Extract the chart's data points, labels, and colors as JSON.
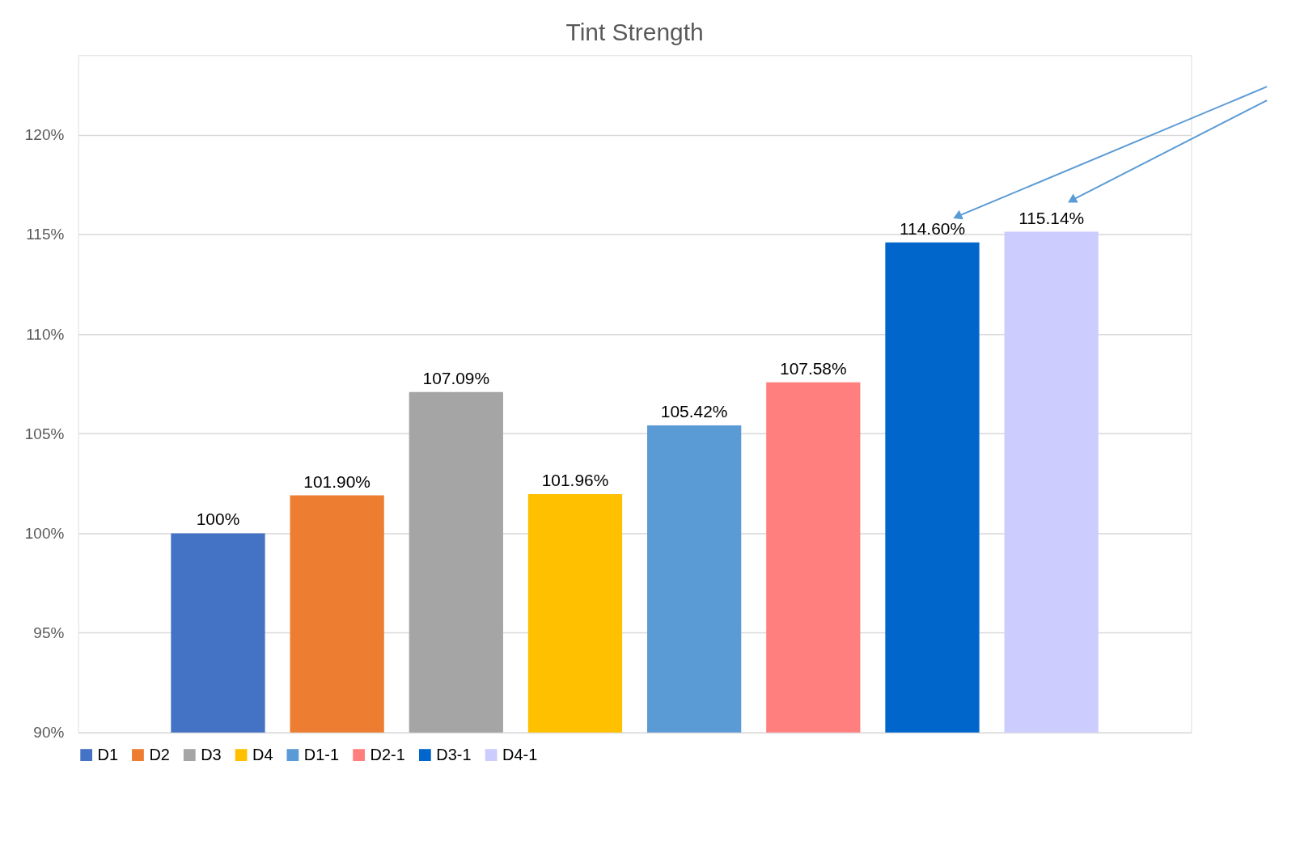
{
  "chart_data": {
    "type": "bar",
    "title": "Tint Strength",
    "categories": [
      null
    ],
    "series": [
      {
        "name": "D1",
        "color": "#4472c4",
        "values": [
          100
        ],
        "value_labels": [
          "100%"
        ]
      },
      {
        "name": "D2",
        "color": "#ed7d31",
        "values": [
          101.9
        ],
        "value_labels": [
          "101.90%"
        ]
      },
      {
        "name": "D3",
        "color": "#a5a5a5",
        "values": [
          107.09
        ],
        "value_labels": [
          "107.09%"
        ]
      },
      {
        "name": "D4",
        "color": "#ffc000",
        "values": [
          101.96
        ],
        "value_labels": [
          "101.96%"
        ]
      },
      {
        "name": "D1-1",
        "color": "#5b9bd5",
        "values": [
          105.42
        ],
        "value_labels": [
          "105.42%"
        ]
      },
      {
        "name": "D2-1",
        "color": "#ff7f7f",
        "values": [
          107.58
        ],
        "value_labels": [
          "107.58%"
        ]
      },
      {
        "name": "D3-1",
        "color": "#0066cc",
        "values": [
          114.6
        ],
        "value_labels": [
          "114.60%"
        ]
      },
      {
        "name": "D4-1",
        "color": "#ccccff",
        "values": [
          115.14
        ],
        "value_labels": [
          "115.14%"
        ]
      }
    ],
    "ylim": [
      90,
      124
    ],
    "yticks": [
      {
        "value": 90,
        "label": "90%"
      },
      {
        "value": 95,
        "label": "95%"
      },
      {
        "value": 100,
        "label": "100%"
      },
      {
        "value": 105,
        "label": "105%"
      },
      {
        "value": 110,
        "label": "110%"
      },
      {
        "value": 115,
        "label": "115%"
      },
      {
        "value": 120,
        "label": "120%"
      }
    ],
    "grid": "y",
    "legend": "bottom"
  }
}
